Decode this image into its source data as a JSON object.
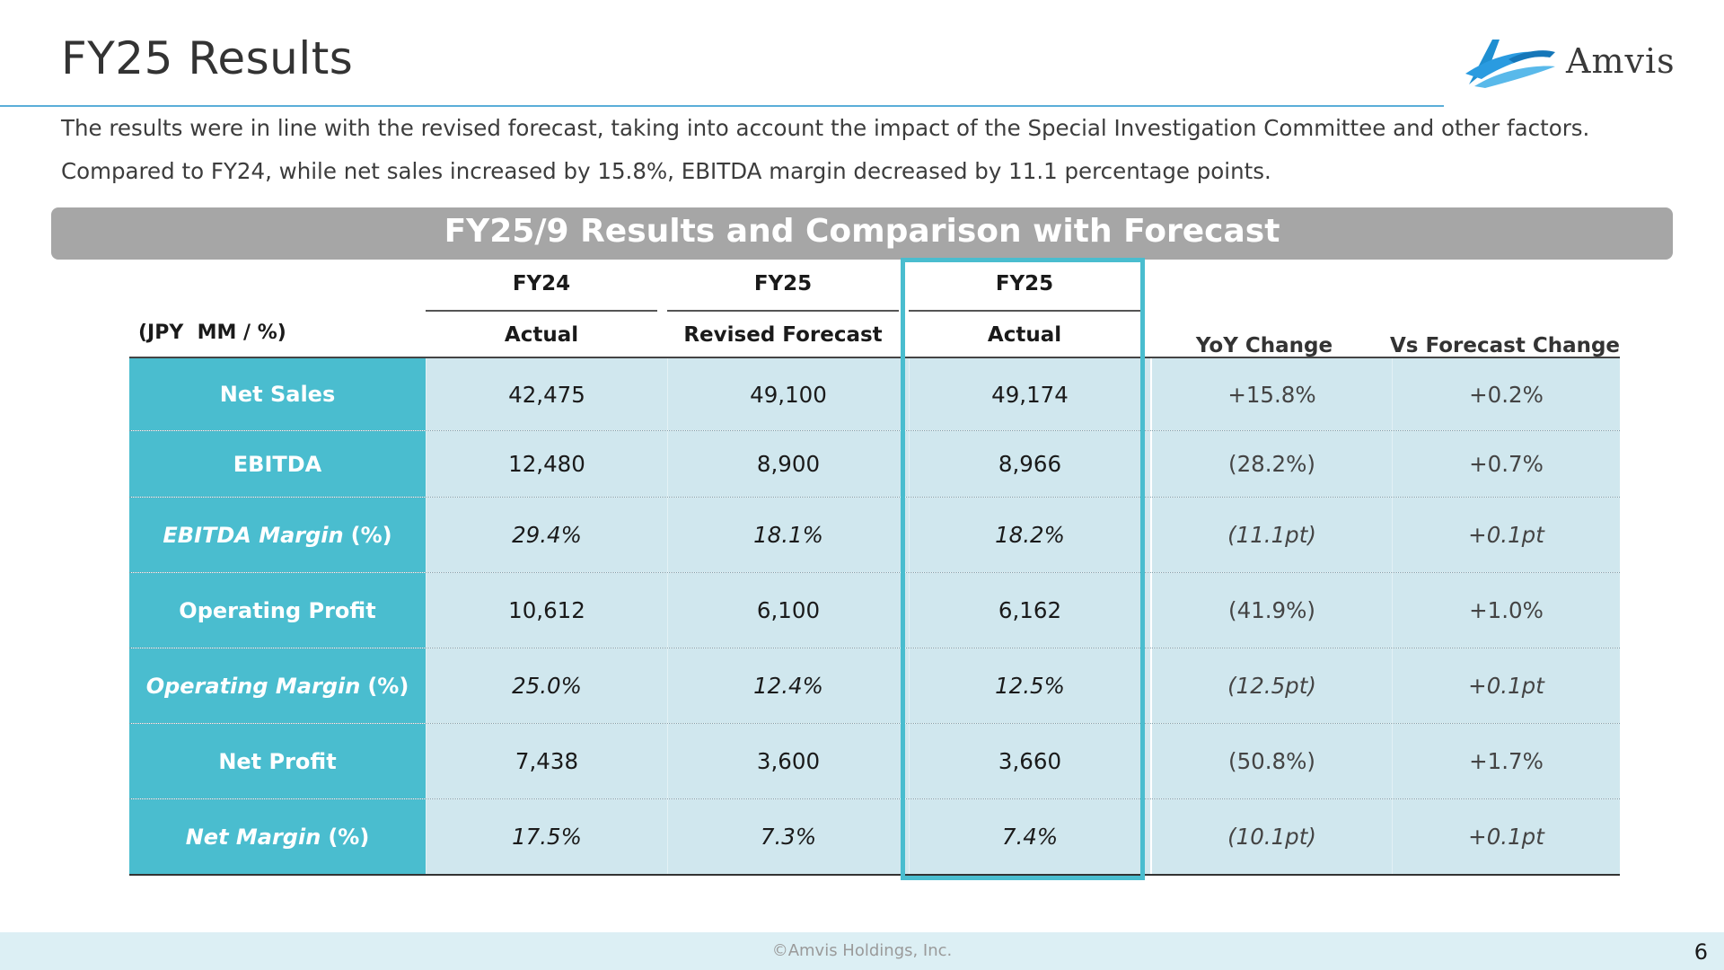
{
  "slide": {
    "title": "FY25 Results",
    "intro_line1": "The results were in line with the revised forecast, taking into account the impact of the Special Investigation Committee and other factors.",
    "intro_line2": "Compared to FY24, while net sales increased by 15.8%, EBITDA margin decreased by 11.1 percentage points.",
    "logo_text": "Amvis",
    "banner": "FY25/9 Results and Comparison with Forecast",
    "footer": "©Amvis Holdings, Inc.",
    "page_number": "6"
  },
  "table": {
    "unit_label": "(JPY  MM / %)",
    "columns": [
      {
        "top": "FY24",
        "bottom": "Actual"
      },
      {
        "top": "FY25",
        "bottom": "Revised Forecast"
      },
      {
        "top": "FY25",
        "bottom": "Actual"
      },
      {
        "top": "",
        "bottom": "YoY Change"
      },
      {
        "top": "",
        "bottom": "Vs Forecast Change"
      }
    ],
    "rows": [
      {
        "label": "Net Sales",
        "suffix": "",
        "ratio": false,
        "values": [
          "42,475",
          "49,100",
          "49,174",
          "+15.8%",
          "+0.2%"
        ]
      },
      {
        "label": "EBITDA",
        "suffix": "",
        "ratio": false,
        "values": [
          "12,480",
          "8,900",
          "8,966",
          "(28.2%)",
          "+0.7%"
        ]
      },
      {
        "label": "EBITDA Margin",
        "suffix": "(%)",
        "ratio": true,
        "values": [
          "29.4%",
          "18.1%",
          "18.2%",
          "(11.1pt)",
          "+0.1pt"
        ]
      },
      {
        "label": "Operating Profit",
        "suffix": "",
        "ratio": false,
        "values": [
          "10,612",
          "6,100",
          "6,162",
          "(41.9%)",
          "+1.0%"
        ]
      },
      {
        "label": "Operating Margin",
        "suffix": "(%)",
        "ratio": true,
        "values": [
          "25.0%",
          "12.4%",
          "12.5%",
          "(12.5pt)",
          "+0.1pt"
        ]
      },
      {
        "label": "Net Profit",
        "suffix": "",
        "ratio": false,
        "values": [
          "7,438",
          "3,600",
          "3,660",
          "(50.8%)",
          "+1.7%"
        ]
      },
      {
        "label": "Net Margin",
        "suffix": "(%)",
        "ratio": true,
        "values": [
          "17.5%",
          "7.3%",
          "7.4%",
          "(10.1pt)",
          "+0.1pt"
        ]
      }
    ],
    "highlighted_column": "FY25 Actual"
  },
  "colors": {
    "accent": "#4abdcf",
    "cell_fill": "#d0e7ee",
    "banner_fill": "#a6a6a6",
    "rule_blue": "#5aaed9"
  }
}
